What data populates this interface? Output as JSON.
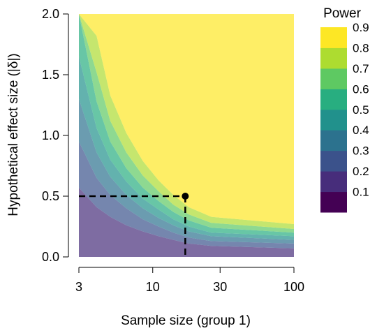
{
  "chart_data": {
    "type": "heatmap",
    "title": "",
    "xlabel": "Sample size (group 1)",
    "ylabel": "Hypothetical effect size (|δ|)",
    "x_scale": "log",
    "xlim": [
      3,
      100
    ],
    "ylim": [
      0,
      2
    ],
    "x_ticks": [
      3,
      10,
      30,
      100
    ],
    "x_tick_labels": [
      "3",
      "10",
      "30",
      "100"
    ],
    "y_ticks": [
      0,
      0.5,
      1,
      1.5,
      2
    ],
    "y_tick_labels": [
      "0.0",
      "0.5",
      "1.0",
      "1.5",
      "2.0"
    ],
    "legend": {
      "title": "Power",
      "placement": "right",
      "levels": [
        "0.1",
        "0.2",
        "0.3",
        "0.4",
        "0.5",
        "0.6",
        "0.7",
        "0.8",
        "0.9"
      ],
      "colors": [
        "#440154",
        "#472d7b",
        "#3b528b",
        "#2c728e",
        "#21918c",
        "#28ae80",
        "#5ec962",
        "#addc30",
        "#fde725"
      ]
    },
    "contour_bands": [
      {
        "name": "<0.1",
        "color": "#440154",
        "y_lower": [
          0,
          0,
          0,
          0,
          0,
          0,
          0,
          0,
          0,
          0
        ],
        "y_upper": [
          0,
          0,
          0,
          0,
          0,
          0,
          0,
          0,
          0,
          0
        ]
      },
      {
        "name": "0.1-0.2",
        "color": "#472d7b",
        "y_lower": [
          0,
          0,
          0,
          0,
          0,
          0,
          0,
          0,
          0,
          0
        ],
        "y_upper": [
          0.57,
          0.41,
          0.33,
          0.26,
          0.21,
          0.17,
          0.14,
          0.11,
          0.09,
          0.07
        ]
      },
      {
        "name": "0.2-0.3",
        "color": "#3b528b",
        "y_lower": [
          0.57,
          0.41,
          0.33,
          0.26,
          0.21,
          0.17,
          0.14,
          0.11,
          0.09,
          0.07
        ],
        "y_upper": [
          0.95,
          0.65,
          0.51,
          0.4,
          0.31,
          0.25,
          0.2,
          0.16,
          0.13,
          0.11
        ]
      },
      {
        "name": "0.3-0.4",
        "color": "#2c728e",
        "y_lower": [
          0.95,
          0.65,
          0.51,
          0.4,
          0.31,
          0.25,
          0.2,
          0.16,
          0.13,
          0.11
        ],
        "y_upper": [
          1.3,
          0.86,
          0.66,
          0.51,
          0.4,
          0.32,
          0.26,
          0.21,
          0.17,
          0.14
        ]
      },
      {
        "name": "0.4-0.5",
        "color": "#21918c",
        "y_lower": [
          1.3,
          0.86,
          0.66,
          0.51,
          0.4,
          0.32,
          0.26,
          0.21,
          0.17,
          0.14
        ],
        "y_upper": [
          1.65,
          1.06,
          0.8,
          0.62,
          0.48,
          0.39,
          0.31,
          0.25,
          0.2,
          0.17
        ]
      },
      {
        "name": "0.5-0.6",
        "color": "#28ae80",
        "y_lower": [
          1.65,
          1.06,
          0.8,
          0.62,
          0.48,
          0.39,
          0.31,
          0.25,
          0.2,
          0.17
        ],
        "y_upper": [
          2.0,
          1.28,
          0.95,
          0.73,
          0.57,
          0.46,
          0.37,
          0.3,
          0.24,
          0.2
        ]
      },
      {
        "name": "0.6-0.7",
        "color": "#5ec962",
        "y_lower": [
          2.0,
          1.28,
          0.95,
          0.73,
          0.57,
          0.46,
          0.37,
          0.3,
          0.24,
          0.2
        ],
        "y_upper": [
          2.0,
          1.52,
          1.12,
          0.86,
          0.67,
          0.54,
          0.43,
          0.35,
          0.28,
          0.23
        ]
      },
      {
        "name": "0.7-0.8",
        "color": "#addc30",
        "y_lower": [
          2.0,
          1.52,
          1.12,
          0.86,
          0.67,
          0.54,
          0.43,
          0.35,
          0.28,
          0.23
        ],
        "y_upper": [
          2.0,
          1.82,
          1.33,
          1.02,
          0.79,
          0.63,
          0.51,
          0.41,
          0.33,
          0.27
        ]
      },
      {
        "name": "0.8-0.9",
        "color": "#fde725",
        "y_lower": [
          2.0,
          1.82,
          1.33,
          1.02,
          0.79,
          0.63,
          0.51,
          0.41,
          0.33,
          0.27
        ],
        "y_upper": [
          2.0,
          2.0,
          2.0,
          2.0,
          2.0,
          2.0,
          2.0,
          2.0,
          2.0,
          2.0
        ]
      }
    ],
    "band_x": [
      3,
      4,
      5,
      6.5,
      8.5,
      11,
      14,
      18,
      26,
      100
    ],
    "band_opacity": 0.7,
    "highlight_point": {
      "x": 17,
      "y": 0.5
    }
  }
}
